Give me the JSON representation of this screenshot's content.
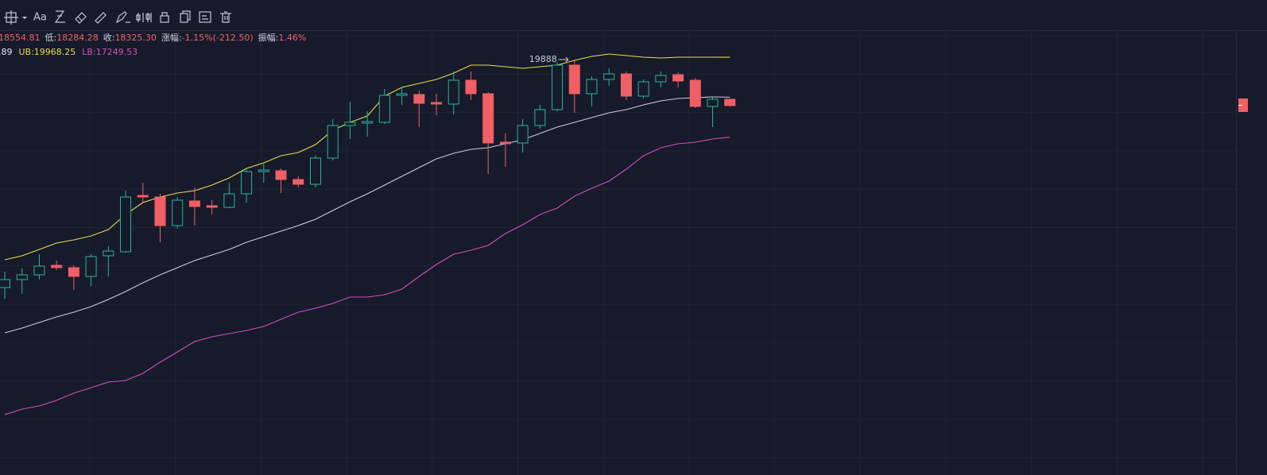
{
  "toolbar": {
    "font_button": "Aa"
  },
  "info_line": [
    {
      "value": "18554.81"
    },
    {
      "label": "低:",
      "value": "18284.28"
    },
    {
      "label": "收:",
      "value": "18325.30"
    },
    {
      "label": "涨幅:",
      "value": "-1.15%(-212.50)"
    },
    {
      "label": "振幅:",
      "value": "1.46%"
    }
  ],
  "indicator_line": [
    {
      "text": ".89",
      "color": "#e6e8ee"
    },
    {
      "text": "UB:19968.25",
      "color": "#e8dc4a"
    },
    {
      "text": "LB:17249.53",
      "color": "#d24fb8"
    }
  ],
  "chart_data": {
    "type": "candlestick",
    "up_color": "#2bb596",
    "down_color": "#ef5f64",
    "ylim": [
      6253,
      20833
    ],
    "open": [
      12139,
      12409,
      12571,
      12895,
      12814,
      12517,
      13219,
      13354,
      15271,
      15217,
      14245,
      15082,
      14920,
      14866,
      15325,
      16081,
      16108,
      15811,
      15649,
      16540,
      17647,
      17728,
      17755,
      18673,
      18700,
      18430,
      18376,
      19186,
      18727,
      17080,
      17053,
      17647,
      18187,
      19699,
      18727,
      19213,
      19402,
      18646,
      19132,
      19375,
      19186,
      18295,
      18540
    ],
    "high": [
      12679,
      12787,
      13273,
      13057,
      12895,
      13273,
      13543,
      15433,
      15703,
      15325,
      15217,
      15541,
      15109,
      15703,
      16189,
      16351,
      16189,
      15919,
      16621,
      17863,
      18457,
      18133,
      18889,
      18943,
      18835,
      18727,
      19483,
      19483,
      18781,
      17377,
      17863,
      18349,
      19807,
      19888,
      19321,
      19591,
      19483,
      19213,
      19483,
      19456,
      19267,
      18619,
      18554.81
    ],
    "low": [
      11761,
      11923,
      12409,
      12733,
      12058,
      12193,
      12517,
      13327,
      15001,
      13678,
      14137,
      14245,
      14623,
      14839,
      15028,
      15703,
      15352,
      15541,
      15541,
      16459,
      17188,
      17269,
      17701,
      18349,
      17593,
      17998,
      18025,
      18511,
      16000,
      16243,
      16729,
      17539,
      18133,
      18079,
      18295,
      18997,
      18511,
      18565,
      18943,
      18943,
      18241,
      17593,
      18284.28
    ],
    "close": [
      12409,
      12571,
      12868,
      12814,
      12517,
      13192,
      13381,
      15217,
      15217,
      14245,
      15109,
      14893,
      14866,
      15325,
      16081,
      16135,
      15811,
      15649,
      16540,
      17647,
      17755,
      17782,
      18673,
      18727,
      18403,
      18376,
      19186,
      18727,
      17053,
      17026,
      17647,
      18187,
      19699,
      18727,
      19213,
      19402,
      18646,
      19132,
      19348,
      19159,
      18295,
      18537.8,
      18325.3
    ],
    "bands": [
      {
        "color": "#e8dc4a",
        "values": [
          13084,
          13219,
          13435,
          13651,
          13759,
          13894,
          14110,
          14623,
          15028,
          15217,
          15352,
          15433,
          15622,
          15865,
          16189,
          16378,
          16621,
          16729,
          16999,
          17485,
          17755,
          17971,
          18646,
          18943,
          19078,
          19213,
          19429,
          19699,
          19699,
          19645,
          19591,
          19645,
          19699,
          19861,
          19996,
          20077,
          20023,
          19969,
          19942,
          19969,
          19969,
          19969,
          19968.25
        ]
      },
      {
        "color": "#c9ccd8",
        "values": [
          10600,
          10762,
          10951,
          11140,
          11302,
          11491,
          11734,
          12004,
          12301,
          12571,
          12814,
          13057,
          13246,
          13435,
          13678,
          13867,
          14056,
          14245,
          14461,
          14758,
          15055,
          15325,
          15622,
          15919,
          16216,
          16513,
          16702,
          16837,
          16891,
          17026,
          17161,
          17377,
          17593,
          17755,
          17917,
          18079,
          18187,
          18349,
          18484,
          18565,
          18592,
          18619,
          18608.89
        ]
      },
      {
        "color": "#d24fb8",
        "values": [
          7819,
          8008,
          8116,
          8305,
          8548,
          8737,
          8926,
          8980,
          9223,
          9601,
          9952,
          10303,
          10465,
          10573,
          10681,
          10816,
          11059,
          11302,
          11437,
          11599,
          11815,
          11815,
          11896,
          12085,
          12517,
          12922,
          13273,
          13408,
          13570,
          13975,
          14272,
          14623,
          14839,
          15244,
          15514,
          15757,
          16162,
          16621,
          16891,
          17026,
          17080,
          17188,
          17249.53
        ]
      }
    ],
    "annotation": {
      "text": "19888"
    }
  }
}
